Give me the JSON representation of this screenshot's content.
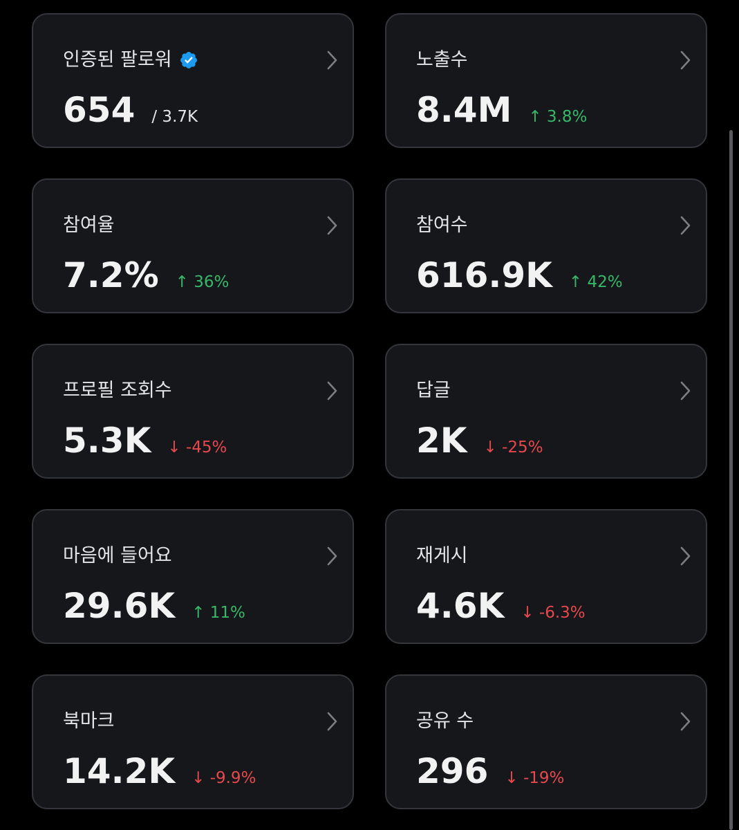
{
  "cards": [
    {
      "label": "인증된 팔로워",
      "value": "654",
      "suffix": "/ 3.7K",
      "change": "",
      "trend": "none",
      "verified": true
    },
    {
      "label": "노출수",
      "value": "8.4M",
      "suffix": "",
      "change": "↑ 3.8%",
      "trend": "up"
    },
    {
      "label": "참여율",
      "value": "7.2%",
      "suffix": "",
      "change": "↑ 36%",
      "trend": "up"
    },
    {
      "label": "참여수",
      "value": "616.9K",
      "suffix": "",
      "change": "↑ 42%",
      "trend": "up"
    },
    {
      "label": "프로필 조회수",
      "value": "5.3K",
      "suffix": "",
      "change": "↓ -45%",
      "trend": "down"
    },
    {
      "label": "답글",
      "value": "2K",
      "suffix": "",
      "change": "↓ -25%",
      "trend": "down"
    },
    {
      "label": "마음에 들어요",
      "value": "29.6K",
      "suffix": "",
      "change": "↑ 11%",
      "trend": "up"
    },
    {
      "label": "재게시",
      "value": "4.6K",
      "suffix": "",
      "change": "↓ -6.3%",
      "trend": "down"
    },
    {
      "label": "북마크",
      "value": "14.2K",
      "suffix": "",
      "change": "↓ -9.9%",
      "trend": "down"
    },
    {
      "label": "공유 수",
      "value": "296",
      "suffix": "",
      "change": "↓ -19%",
      "trend": "down"
    }
  ],
  "colors": {
    "background": "#000000",
    "card": "#16171b",
    "card_border": "#34363b",
    "up": "#37b869",
    "down": "#e5484d",
    "verified": "#1d9bf0"
  },
  "icons": {
    "verified": "verified-badge-icon",
    "chevron": "chevron-right-icon"
  }
}
